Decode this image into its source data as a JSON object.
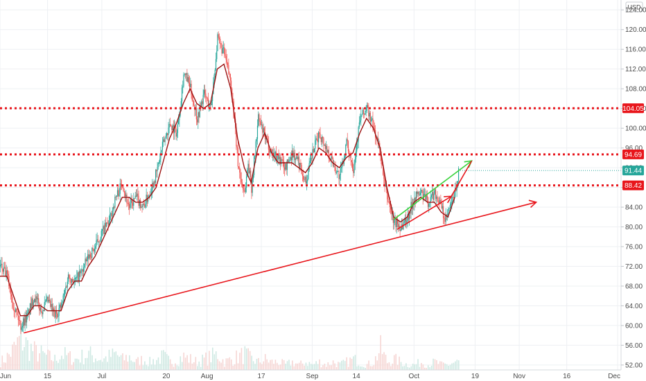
{
  "chart_data": {
    "type": "candlestick",
    "currency": "USD",
    "y_ticks": [
      52,
      56,
      60,
      64,
      68,
      72,
      76,
      80,
      84,
      88,
      92,
      96,
      100,
      104,
      108,
      112,
      116,
      120,
      124
    ],
    "y_tick_labels": [
      "52.00",
      "56.00",
      "60.00",
      "64.00",
      "68.00",
      "72.00",
      "76.00",
      "80.00",
      "84.00",
      "88.00",
      "92.00",
      "96.00",
      "100.00",
      "104.00",
      "108.00",
      "112.00",
      "116.00",
      "120.00",
      "124.00"
    ],
    "ylim": [
      51,
      126
    ],
    "x_ticks": [
      {
        "day": 0,
        "label": "Jun"
      },
      {
        "day": 14,
        "label": "15"
      },
      {
        "day": 30,
        "label": "Jul"
      },
      {
        "day": 49,
        "label": "20"
      },
      {
        "day": 61,
        "label": "Aug"
      },
      {
        "day": 77,
        "label": "17"
      },
      {
        "day": 92,
        "label": "Sep"
      },
      {
        "day": 105,
        "label": "14"
      },
      {
        "day": 122,
        "label": "Oct"
      },
      {
        "day": 140,
        "label": "19"
      },
      {
        "day": 153,
        "label": "Nov"
      },
      {
        "day": 167,
        "label": "16"
      },
      {
        "day": 182,
        "label": "Dec"
      }
    ],
    "xlim": [
      0,
      183
    ],
    "price_series": {
      "days": [
        0,
        2,
        4,
        6,
        8,
        10,
        12,
        14,
        16,
        18,
        20,
        22,
        24,
        26,
        28,
        30,
        32,
        34,
        36,
        37,
        38,
        40,
        42,
        44,
        46,
        48,
        50,
        52,
        54,
        55,
        56,
        58,
        60,
        62,
        64,
        66,
        68,
        69,
        70,
        71,
        72,
        73,
        74,
        76,
        78,
        80,
        82,
        84,
        86,
        88,
        90,
        92,
        94,
        96,
        98,
        100,
        102,
        104,
        106,
        108,
        110,
        112,
        113,
        114,
        116,
        118,
        120,
        122,
        124,
        126,
        128,
        130,
        131,
        132,
        134,
        135
      ],
      "close": [
        72,
        70,
        64,
        60,
        62,
        66,
        63,
        65,
        62,
        64,
        70,
        69,
        71,
        74,
        76,
        79,
        81,
        86,
        89,
        86,
        84,
        86,
        84,
        87,
        91,
        97,
        101,
        99,
        111,
        110,
        108,
        102,
        107,
        104,
        118,
        115,
        109,
        101,
        93,
        89,
        87,
        93,
        88,
        102,
        98,
        95,
        94,
        92,
        95,
        93,
        89,
        95,
        99,
        96,
        93,
        90,
        97,
        92,
        102,
        104,
        100,
        95,
        89,
        86,
        81,
        80,
        82,
        86,
        87,
        85,
        87,
        84,
        81,
        83,
        87,
        91
      ]
    },
    "ma_series": {
      "days": [
        0,
        2,
        4,
        6,
        8,
        10,
        12,
        14,
        16,
        18,
        20,
        22,
        24,
        26,
        28,
        30,
        32,
        34,
        36,
        38,
        40,
        42,
        44,
        46,
        48,
        50,
        52,
        54,
        56,
        58,
        60,
        62,
        64,
        66,
        68,
        70,
        72,
        74,
        76,
        78,
        80,
        82,
        84,
        86,
        88,
        90,
        92,
        94,
        96,
        98,
        100,
        102,
        104,
        106,
        108,
        110,
        112,
        114,
        116,
        118,
        120,
        122,
        124,
        126,
        128,
        130,
        132,
        134
      ],
      "values": [
        70,
        70,
        66,
        62,
        62,
        64,
        64,
        63,
        63,
        63,
        67,
        69,
        69,
        72,
        74,
        77,
        80,
        83,
        86,
        86,
        85,
        85,
        86,
        88,
        93,
        98,
        101,
        105,
        108,
        105,
        104,
        105,
        112,
        113,
        108,
        98,
        92,
        89,
        96,
        99,
        95,
        93,
        93,
        93,
        92,
        91,
        93,
        96,
        95,
        93,
        92,
        94,
        95,
        99,
        102,
        100,
        96,
        88,
        82,
        81,
        82,
        85,
        86,
        85,
        85,
        83,
        82,
        86
      ]
    },
    "volume_series": {
      "days": [
        0,
        2,
        4,
        6,
        8,
        10,
        12,
        14,
        16,
        18,
        20,
        22,
        24,
        26,
        28,
        30,
        32,
        34,
        36,
        38,
        40,
        42,
        44,
        46,
        48,
        50,
        52,
        54,
        56,
        58,
        60,
        62,
        64,
        66,
        68,
        70,
        72,
        74,
        76,
        78,
        80,
        82,
        84,
        86,
        88,
        90,
        92,
        94,
        96,
        98,
        100,
        102,
        104,
        106,
        108,
        110,
        112,
        114,
        116,
        118,
        120,
        122,
        124,
        126,
        128,
        130,
        132,
        134
      ],
      "values": [
        3,
        5,
        8,
        12,
        9,
        7,
        6,
        5,
        4,
        6,
        5,
        4,
        5,
        6,
        5,
        4,
        5,
        6,
        4,
        5,
        3,
        4,
        3,
        4,
        5,
        3,
        4,
        5,
        4,
        3,
        4,
        5,
        6,
        3,
        4,
        5,
        6,
        4,
        3,
        4,
        3,
        3,
        2,
        3,
        2,
        3,
        2,
        3,
        2,
        3,
        2,
        3,
        4,
        3,
        2,
        3,
        8,
        3,
        4,
        3,
        2,
        2,
        3,
        2,
        3,
        2,
        2,
        3
      ]
    },
    "horizontal_levels": [
      {
        "value": 104.05,
        "label": "104.05",
        "color": "#e8151b"
      },
      {
        "value": 94.69,
        "label": "94.69",
        "color": "#e8151b"
      },
      {
        "value": 88.42,
        "label": "88.42",
        "color": "#e8151b"
      }
    ],
    "current_price": {
      "value": 91.44,
      "label": "91.44",
      "color": "#26a69a"
    },
    "trendlines": [
      {
        "from": [
          7,
          58.5
        ],
        "to": [
          158,
          85
        ],
        "color": "#e8151b",
        "arrow": true
      },
      {
        "from": [
          117,
          79.5
        ],
        "to": [
          133,
          86.2
        ],
        "color": "#e8151b",
        "arrow": true
      },
      {
        "from": [
          116,
          81.5
        ],
        "to": [
          139,
          93.4
        ],
        "color": "#39d23a",
        "arrow": true
      },
      {
        "from": [
          133,
          86.2
        ],
        "to": [
          139,
          93.4
        ],
        "color": "#e8151b",
        "arrow": false
      }
    ],
    "colors": {
      "up": "#26a69a",
      "down": "#ef5350",
      "ma": "#9b1010",
      "grid": "#eef0f3"
    }
  }
}
